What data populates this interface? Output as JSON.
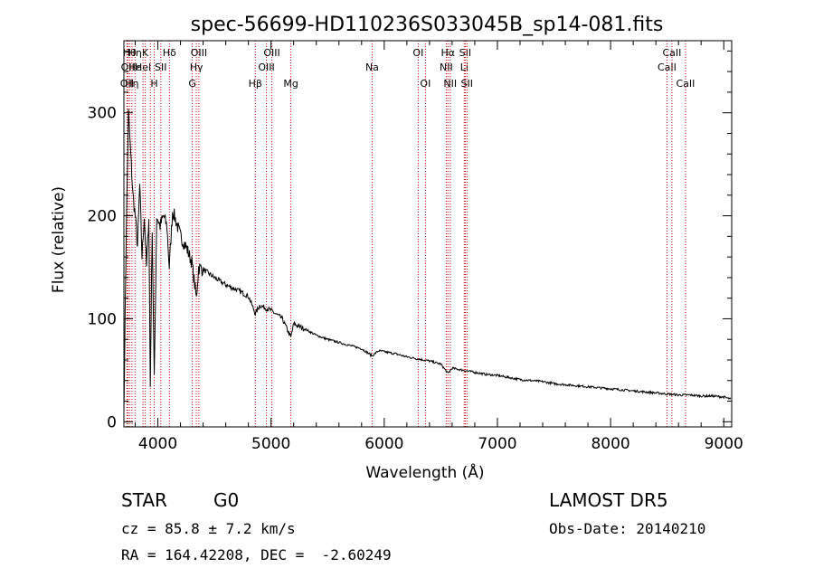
{
  "chart_data": {
    "type": "line",
    "title": "spec-56699-HD110236S033045B_sp14-081.fits",
    "xlabel": "Wavelength (Å)",
    "ylabel": "Flux (relative)",
    "xlim": [
      3700,
      9070
    ],
    "ylim": [
      -5,
      370
    ],
    "x_ticks": [
      4000,
      5000,
      6000,
      7000,
      8000,
      9000
    ],
    "y_ticks": [
      0,
      100,
      200,
      300
    ],
    "grid": false,
    "series": [
      {
        "color": "#000000",
        "x": [
          3700,
          3720,
          3740,
          3760,
          3780,
          3800,
          3820,
          3840,
          3860,
          3880,
          3900,
          3920,
          3933,
          3950,
          3968,
          3990,
          4020,
          4050,
          4080,
          4101,
          4130,
          4160,
          4200,
          4250,
          4300,
          4340,
          4360,
          4400,
          4500,
          4600,
          4700,
          4800,
          4861,
          4900,
          5000,
          5100,
          5175,
          5200,
          5300,
          5400,
          5500,
          5600,
          5700,
          5800,
          5893,
          5950,
          6000,
          6100,
          6200,
          6300,
          6400,
          6500,
          6563,
          6600,
          6700,
          6800,
          6900,
          7000,
          7100,
          7200,
          7300,
          7400,
          7500,
          7600,
          7700,
          7800,
          7900,
          8000,
          8100,
          8200,
          8300,
          8400,
          8500,
          8600,
          8700,
          8800,
          8900,
          9000,
          9060
        ],
        "values": [
          10,
          180,
          300,
          260,
          220,
          200,
          170,
          230,
          160,
          200,
          150,
          200,
          35,
          190,
          40,
          200,
          190,
          200,
          190,
          150,
          205,
          195,
          180,
          170,
          155,
          120,
          150,
          148,
          140,
          133,
          128,
          122,
          105,
          113,
          108,
          100,
          82,
          95,
          90,
          84,
          80,
          77,
          74,
          71,
          64,
          69,
          68,
          66,
          63,
          61,
          59,
          56,
          47,
          52,
          50,
          48,
          46,
          45,
          43,
          41,
          40,
          39,
          37,
          36,
          35,
          34,
          33,
          32,
          31,
          30,
          29,
          28,
          27,
          26,
          26,
          25,
          25,
          24,
          22
        ]
      }
    ],
    "lines": [
      {
        "wl": 3727,
        "labels": [
          {
            "row": 3,
            "text": "OII"
          }
        ]
      },
      {
        "wl": 3734,
        "labels": [
          {
            "row": 2,
            "text": "OII"
          }
        ]
      },
      {
        "wl": 3750,
        "labels": [
          {
            "row": 1,
            "text": "Hθ"
          }
        ]
      },
      {
        "wl": 3771,
        "labels": [
          {
            "row": 3,
            "text": "Hη"
          }
        ]
      },
      {
        "wl": 3798,
        "labels": [
          {
            "row": 1,
            "text": "Hη"
          },
          {
            "row": 2,
            "text": "Hε"
          }
        ]
      },
      {
        "wl": 3869,
        "labels": [
          {
            "row": 2,
            "text": "HeI"
          }
        ]
      },
      {
        "wl": 3889,
        "labels": [
          {
            "row": 1,
            "text": "K"
          }
        ]
      },
      {
        "wl": 3934,
        "labels": []
      },
      {
        "wl": 3968,
        "labels": [
          {
            "row": 3,
            "text": "H"
          }
        ]
      },
      {
        "wl": 4026,
        "labels": [
          {
            "row": 2,
            "text": "SII"
          }
        ]
      },
      {
        "wl": 4102,
        "labels": [
          {
            "row": 1,
            "text": "Hδ"
          }
        ]
      },
      {
        "wl": 4304,
        "labels": [
          {
            "row": 3,
            "text": "G"
          }
        ]
      },
      {
        "wl": 4340,
        "labels": [
          {
            "row": 2,
            "text": "Hγ"
          }
        ]
      },
      {
        "wl": 4363,
        "labels": [
          {
            "row": 1,
            "text": "OIII"
          }
        ]
      },
      {
        "wl": 4861,
        "labels": [
          {
            "row": 3,
            "text": "Hβ"
          }
        ]
      },
      {
        "wl": 4959,
        "labels": [
          {
            "row": 2,
            "text": "OIII"
          }
        ]
      },
      {
        "wl": 5007,
        "labels": [
          {
            "row": 1,
            "text": "OIII"
          }
        ]
      },
      {
        "wl": 5175,
        "labels": [
          {
            "row": 3,
            "text": "Mg"
          }
        ]
      },
      {
        "wl": 5893,
        "labels": [
          {
            "row": 2,
            "text": "Na"
          }
        ]
      },
      {
        "wl": 6300,
        "labels": [
          {
            "row": 1,
            "text": "OI"
          }
        ]
      },
      {
        "wl": 6364,
        "labels": [
          {
            "row": 3,
            "text": "OI"
          }
        ]
      },
      {
        "wl": 6548,
        "labels": [
          {
            "row": 2,
            "text": "NII"
          }
        ]
      },
      {
        "wl": 6563,
        "labels": [
          {
            "row": 1,
            "text": "Hα"
          }
        ]
      },
      {
        "wl": 6583,
        "labels": [
          {
            "row": 3,
            "text": "NII"
          }
        ]
      },
      {
        "wl": 6707,
        "labels": [
          {
            "row": 2,
            "text": "Li"
          }
        ]
      },
      {
        "wl": 6716,
        "labels": [
          {
            "row": 1,
            "text": "SII"
          }
        ]
      },
      {
        "wl": 6731,
        "labels": [
          {
            "row": 3,
            "text": "SII"
          }
        ]
      },
      {
        "wl": 8498,
        "labels": [
          {
            "row": 2,
            "text": "CaII"
          }
        ]
      },
      {
        "wl": 8542,
        "labels": [
          {
            "row": 1,
            "text": "CaII"
          }
        ]
      },
      {
        "wl": 8662,
        "labels": [
          {
            "row": 3,
            "text": "CaII"
          }
        ]
      }
    ],
    "line_color": "#cc0000"
  },
  "info": {
    "object_class": "STAR",
    "subclass": "G0",
    "survey": "LAMOST DR5",
    "redshift": "cz = 85.8 ± 7.2 km/s",
    "obs_date": "Obs-Date: 20140210",
    "coords": "RA = 164.42208, DEC =  -2.60249"
  }
}
